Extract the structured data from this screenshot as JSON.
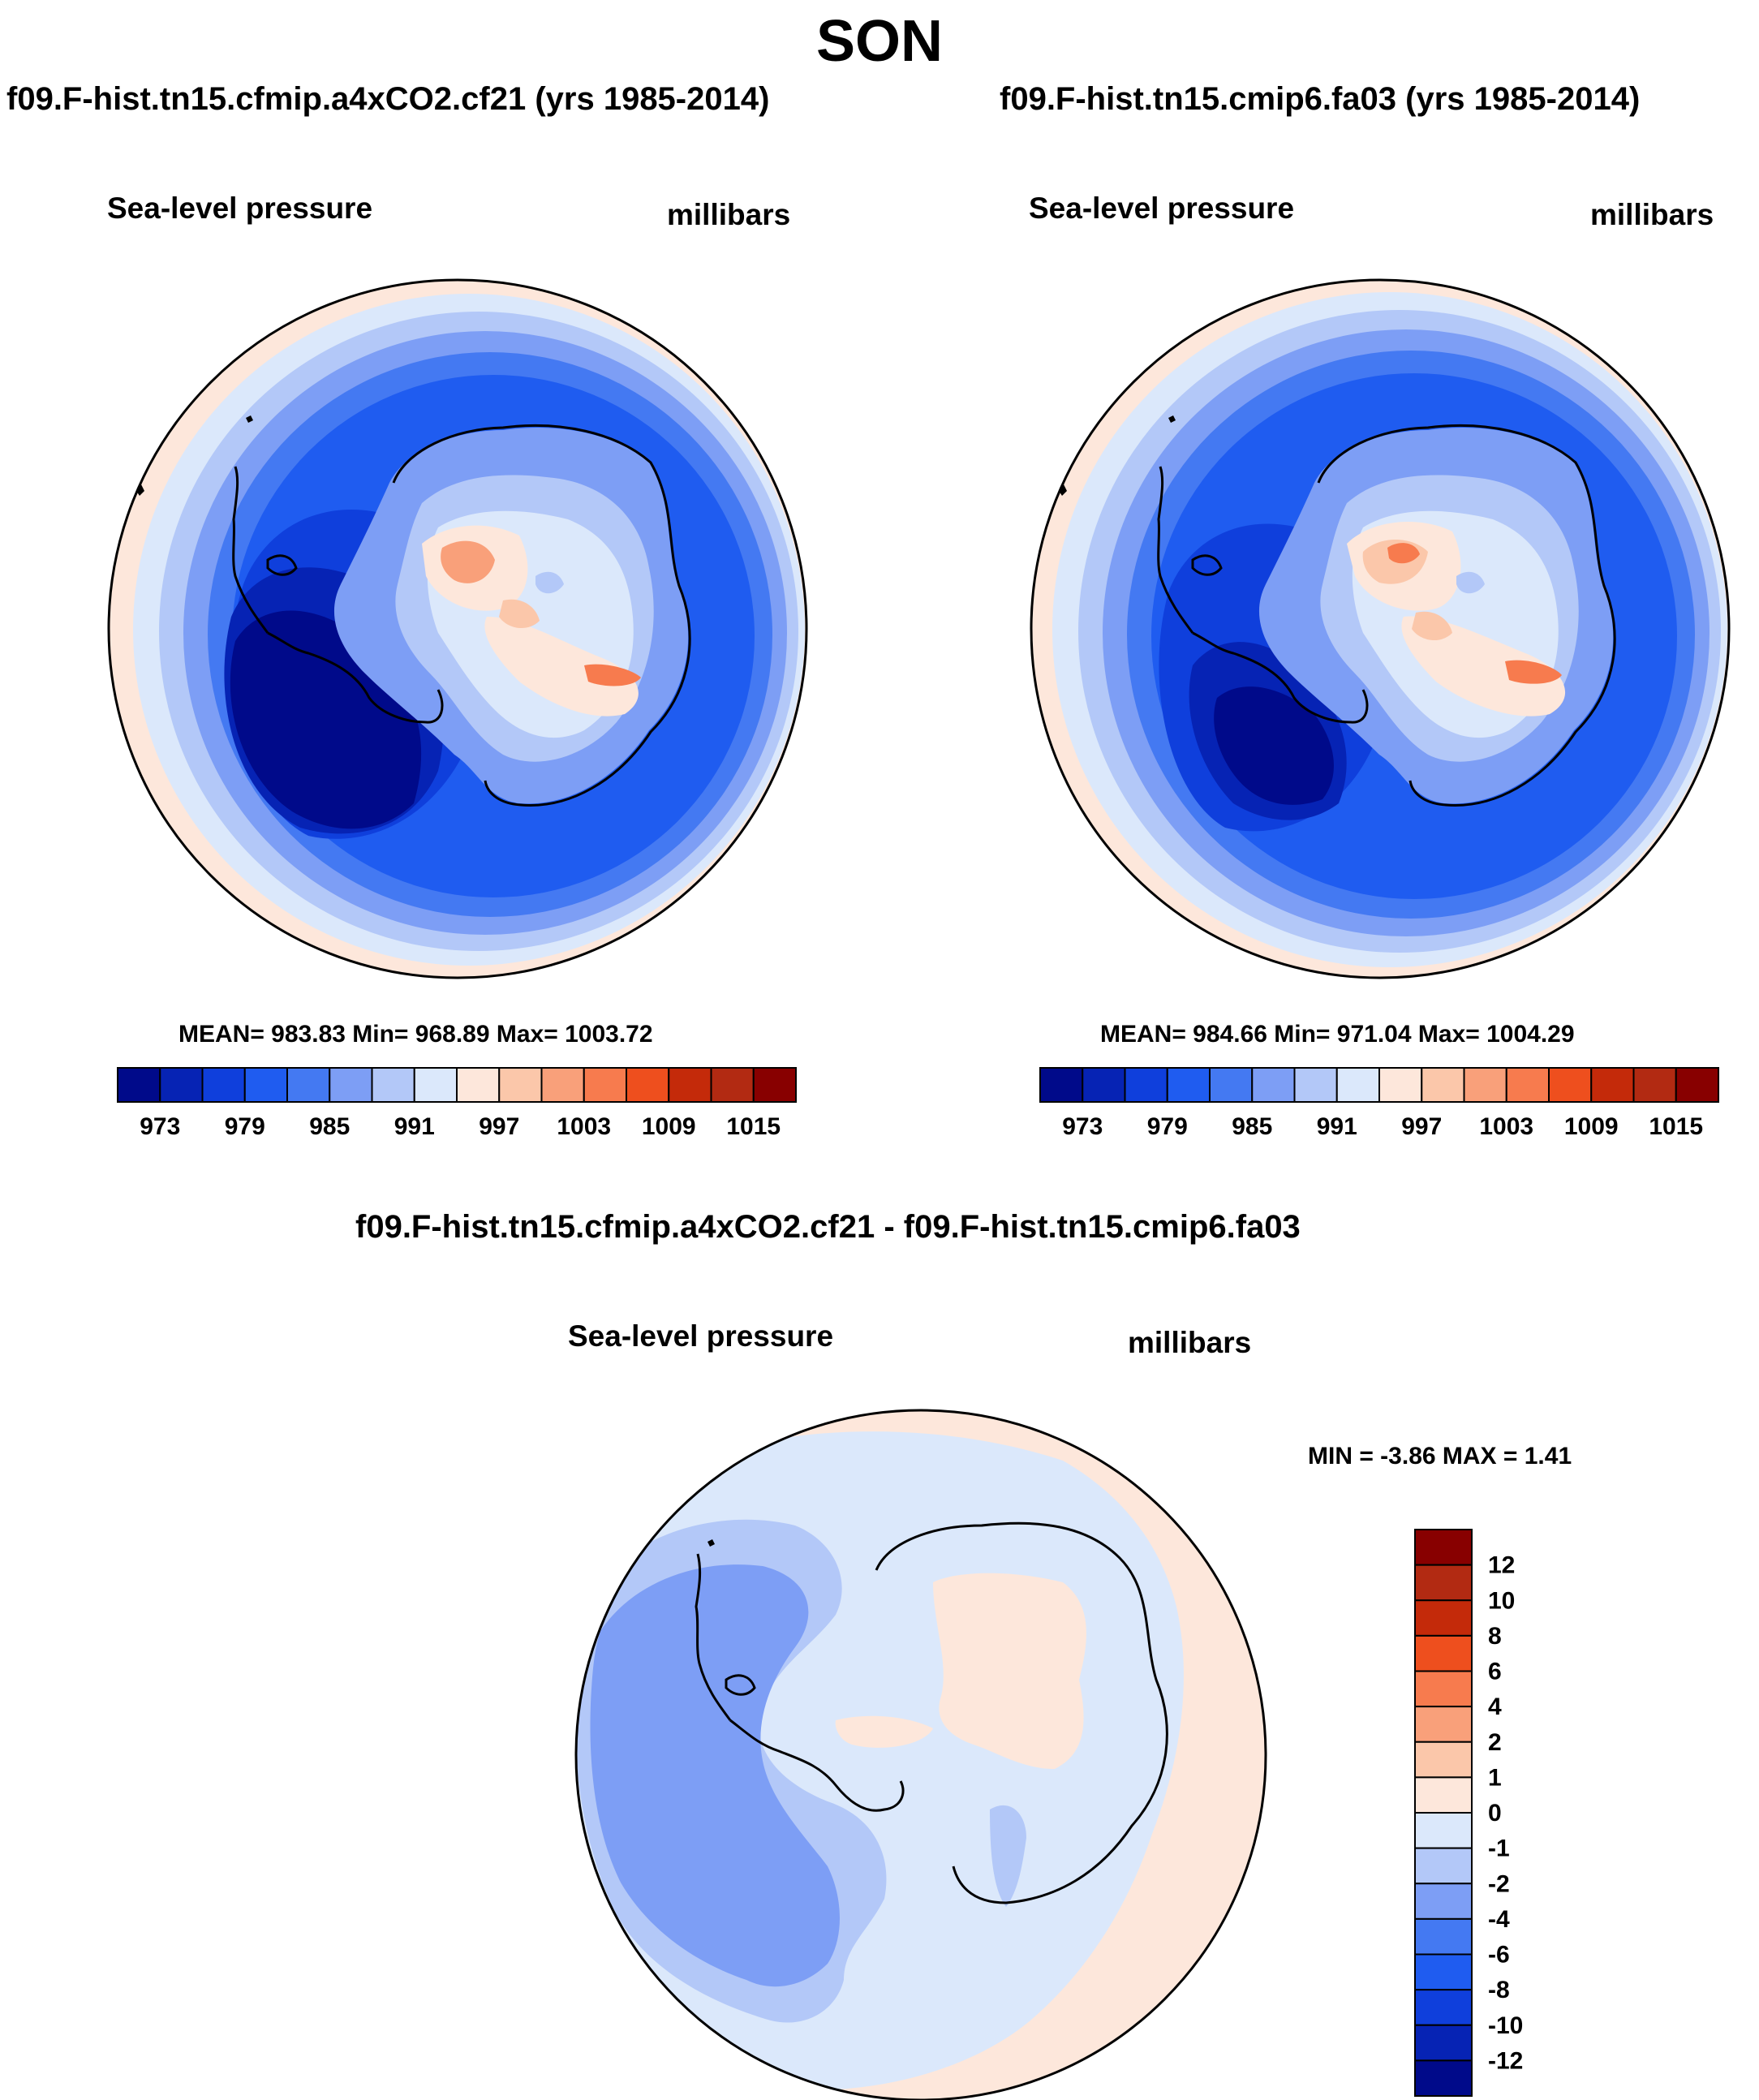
{
  "page": {
    "season": "SON"
  },
  "panels": [
    {
      "title": "f09.F-hist.tn15.cfmip.a4xCO2.cf21 (yrs 1985-2014)",
      "variable_label": "Sea-level pressure",
      "units_label": "millibars",
      "stats": "MEAN= 983.83  Min= 968.89  Max= 1003.72"
    },
    {
      "title": "f09.F-hist.tn15.cmip6.fa03 (yrs 1985-2014)",
      "variable_label": "Sea-level pressure",
      "units_label": "millibars",
      "stats": "MEAN= 984.66  Min= 971.04  Max= 1004.29"
    },
    {
      "title": "f09.F-hist.tn15.cfmip.a4xCO2.cf21 - f09.F-hist.tn15.cmip6.fa03",
      "variable_label": "Sea-level pressure",
      "units_label": "millibars",
      "stats": "MIN =  -3.86 MAX =   1.41"
    }
  ],
  "chart_data": [
    {
      "type": "heatmap",
      "projection": "south polar stereographic",
      "title": "f09.F-hist.tn15.cfmip.a4xCO2.cf21 (yrs 1985-2014)",
      "variable": "Sea-level pressure",
      "units": "millibars",
      "mean": 983.83,
      "min": 968.89,
      "max": 1003.72,
      "colorbar": {
        "orientation": "horizontal",
        "levels": [
          973,
          976,
          979,
          982,
          985,
          988,
          991,
          994,
          997,
          1000,
          1003,
          1006,
          1009,
          1012,
          1015
        ],
        "tick_labels": [
          "973",
          "979",
          "985",
          "991",
          "997",
          "1003",
          "1009",
          "1015"
        ],
        "colors": [
          "#000a8a",
          "#0623b4",
          "#0f3fdc",
          "#1f5cf0",
          "#4479f2",
          "#7d9ef5",
          "#b3c8f8",
          "#dbe8fb",
          "#fde7db",
          "#fbc7aa",
          "#f9a07a",
          "#f77b4e",
          "#ee4f1e",
          "#c42a0a",
          "#b22a12",
          "#880000"
        ]
      }
    },
    {
      "type": "heatmap",
      "projection": "south polar stereographic",
      "title": "f09.F-hist.tn15.cmip6.fa03 (yrs 1985-2014)",
      "variable": "Sea-level pressure",
      "units": "millibars",
      "mean": 984.66,
      "min": 971.04,
      "max": 1004.29,
      "colorbar": {
        "orientation": "horizontal",
        "levels": [
          973,
          976,
          979,
          982,
          985,
          988,
          991,
          994,
          997,
          1000,
          1003,
          1006,
          1009,
          1012,
          1015
        ],
        "tick_labels": [
          "973",
          "979",
          "985",
          "991",
          "997",
          "1003",
          "1009",
          "1015"
        ],
        "colors": [
          "#000a8a",
          "#0623b4",
          "#0f3fdc",
          "#1f5cf0",
          "#4479f2",
          "#7d9ef5",
          "#b3c8f8",
          "#dbe8fb",
          "#fde7db",
          "#fbc7aa",
          "#f9a07a",
          "#f77b4e",
          "#ee4f1e",
          "#c42a0a",
          "#b22a12",
          "#880000"
        ]
      }
    },
    {
      "type": "heatmap",
      "projection": "south polar stereographic",
      "title": "f09.F-hist.tn15.cfmip.a4xCO2.cf21 - f09.F-hist.tn15.cmip6.fa03",
      "variable": "Sea-level pressure",
      "units": "millibars",
      "min": -3.86,
      "max": 1.41,
      "colorbar": {
        "orientation": "vertical",
        "tick_labels": [
          "12",
          "10",
          "8",
          "6",
          "4",
          "2",
          "1",
          "0",
          "-1",
          "-2",
          "-4",
          "-6",
          "-8",
          "-10",
          "-12"
        ],
        "colors": [
          "#880000",
          "#b22a12",
          "#c42a0a",
          "#ee4f1e",
          "#f77b4e",
          "#f9a07a",
          "#fbc7aa",
          "#fde7db",
          "#dbe8fb",
          "#b3c8f8",
          "#7d9ef5",
          "#4479f2",
          "#1f5cf0",
          "#0f3fdc",
          "#0623b4",
          "#000a8a"
        ]
      }
    }
  ]
}
